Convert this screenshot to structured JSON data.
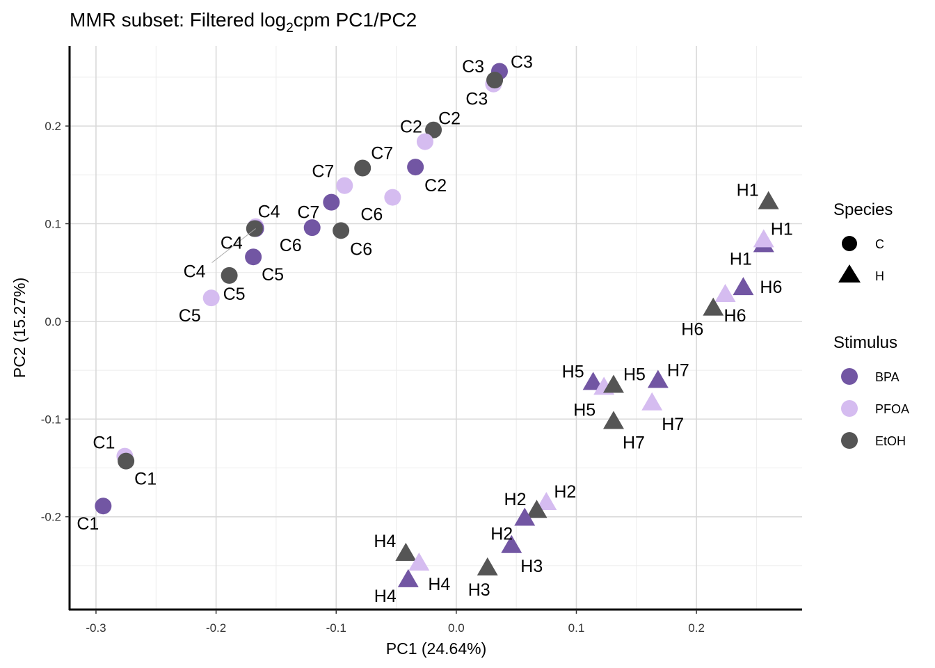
{
  "chart_data": {
    "type": "scatter",
    "title": "MMR subset: Filtered log",
    "title_sub": "2",
    "title_rest": "cpm PC1/PC2",
    "xlabel": "PC1 (24.64%)",
    "ylabel": "PC2 (15.27%)",
    "xlim": [
      -0.322,
      0.288
    ],
    "ylim": [
      -0.295,
      0.282
    ],
    "xticks": [
      -0.3,
      -0.2,
      -0.1,
      0.0,
      0.1,
      0.2
    ],
    "xtick_labels": [
      "-0.3",
      "-0.2",
      "-0.1",
      "0.0",
      "0.1",
      "0.2"
    ],
    "yticks": [
      -0.2,
      -0.1,
      0.0,
      0.1,
      0.2
    ],
    "ytick_labels": [
      "-0.2",
      "-0.1",
      "0.0",
      "0.1",
      "0.2"
    ],
    "grid": true,
    "legend_placement": "right",
    "legends": {
      "species": {
        "title": "Species",
        "entries": [
          {
            "label": "C",
            "shape": "circle"
          },
          {
            "label": "H",
            "shape": "triangle"
          }
        ]
      },
      "stimulus": {
        "title": "Stimulus",
        "entries": [
          {
            "label": "BPA",
            "color": "#7256A3"
          },
          {
            "label": "PFOA",
            "color": "#D5BCF0"
          },
          {
            "label": "EtOH",
            "color": "#555555"
          }
        ]
      }
    },
    "points": [
      {
        "label": "C3",
        "species": "C",
        "stimulus": "BPA",
        "x": 0.036,
        "y": 0.256
      },
      {
        "label": "C3",
        "species": "C",
        "stimulus": "PFOA",
        "x": 0.031,
        "y": 0.243
      },
      {
        "label": "C3",
        "species": "C",
        "stimulus": "EtOH",
        "x": 0.032,
        "y": 0.247
      },
      {
        "label": "C2",
        "species": "C",
        "stimulus": "EtOH",
        "x": -0.019,
        "y": 0.196
      },
      {
        "label": "C2",
        "species": "C",
        "stimulus": "PFOA",
        "x": -0.026,
        "y": 0.184
      },
      {
        "label": "C2",
        "species": "C",
        "stimulus": "BPA",
        "x": -0.034,
        "y": 0.158
      },
      {
        "label": "C7",
        "species": "C",
        "stimulus": "EtOH",
        "x": -0.078,
        "y": 0.157
      },
      {
        "label": "C7",
        "species": "C",
        "stimulus": "PFOA",
        "x": -0.093,
        "y": 0.139
      },
      {
        "label": "C6",
        "species": "C",
        "stimulus": "PFOA",
        "x": -0.053,
        "y": 0.127
      },
      {
        "label": "C7",
        "species": "C",
        "stimulus": "BPA",
        "x": -0.104,
        "y": 0.122
      },
      {
        "label": "C6",
        "species": "C",
        "stimulus": "BPA",
        "x": -0.12,
        "y": 0.096
      },
      {
        "label": "C6",
        "species": "C",
        "stimulus": "EtOH",
        "x": -0.096,
        "y": 0.093
      },
      {
        "label": "C4",
        "species": "C",
        "stimulus": "PFOA",
        "x": -0.167,
        "y": 0.097
      },
      {
        "label": "C4",
        "species": "C",
        "stimulus": "BPA",
        "x": -0.167,
        "y": 0.095
      },
      {
        "label": "C4",
        "species": "C",
        "stimulus": "EtOH",
        "x": -0.168,
        "y": 0.095
      },
      {
        "label": "C5",
        "species": "C",
        "stimulus": "BPA",
        "x": -0.169,
        "y": 0.066
      },
      {
        "label": "C5",
        "species": "C",
        "stimulus": "EtOH",
        "x": -0.189,
        "y": 0.047
      },
      {
        "label": "C5",
        "species": "C",
        "stimulus": "PFOA",
        "x": -0.204,
        "y": 0.024
      },
      {
        "label": "C1",
        "species": "C",
        "stimulus": "PFOA",
        "x": -0.276,
        "y": -0.138
      },
      {
        "label": "C1",
        "species": "C",
        "stimulus": "EtOH",
        "x": -0.275,
        "y": -0.143
      },
      {
        "label": "C1",
        "species": "C",
        "stimulus": "BPA",
        "x": -0.294,
        "y": -0.189
      },
      {
        "label": "H1",
        "species": "H",
        "stimulus": "EtOH",
        "x": 0.26,
        "y": 0.122
      },
      {
        "label": "H1",
        "species": "H",
        "stimulus": "BPA",
        "x": 0.256,
        "y": 0.078
      },
      {
        "label": "H1",
        "species": "H",
        "stimulus": "PFOA",
        "x": 0.256,
        "y": 0.083
      },
      {
        "label": "H6",
        "species": "H",
        "stimulus": "BPA",
        "x": 0.239,
        "y": 0.034
      },
      {
        "label": "H6",
        "species": "H",
        "stimulus": "PFOA",
        "x": 0.224,
        "y": 0.027
      },
      {
        "label": "H6",
        "species": "H",
        "stimulus": "EtOH",
        "x": 0.214,
        "y": 0.013
      },
      {
        "label": "H5",
        "species": "H",
        "stimulus": "BPA",
        "x": 0.114,
        "y": -0.063
      },
      {
        "label": "H5",
        "species": "H",
        "stimulus": "PFOA",
        "x": 0.123,
        "y": -0.068
      },
      {
        "label": "H5",
        "species": "H",
        "stimulus": "EtOH",
        "x": 0.131,
        "y": -0.066
      },
      {
        "label": "H7",
        "species": "H",
        "stimulus": "BPA",
        "x": 0.168,
        "y": -0.061
      },
      {
        "label": "H7",
        "species": "H",
        "stimulus": "PFOA",
        "x": 0.163,
        "y": -0.084
      },
      {
        "label": "H7",
        "species": "H",
        "stimulus": "EtOH",
        "x": 0.131,
        "y": -0.103
      },
      {
        "label": "H2",
        "species": "H",
        "stimulus": "PFOA",
        "x": 0.075,
        "y": -0.186
      },
      {
        "label": "H2",
        "species": "H",
        "stimulus": "EtOH",
        "x": 0.067,
        "y": -0.194
      },
      {
        "label": "H2",
        "species": "H",
        "stimulus": "BPA",
        "x": 0.057,
        "y": -0.202
      },
      {
        "label": "H3",
        "species": "H",
        "stimulus": "BPA",
        "x": 0.046,
        "y": -0.23
      },
      {
        "label": "H3",
        "species": "H",
        "stimulus": "EtOH",
        "x": 0.026,
        "y": -0.253
      },
      {
        "label": "H4",
        "species": "H",
        "stimulus": "EtOH",
        "x": -0.042,
        "y": -0.238
      },
      {
        "label": "H4",
        "species": "H",
        "stimulus": "PFOA",
        "x": -0.031,
        "y": -0.248
      },
      {
        "label": "H4",
        "species": "H",
        "stimulus": "BPA",
        "x": -0.04,
        "y": -0.265
      }
    ]
  }
}
